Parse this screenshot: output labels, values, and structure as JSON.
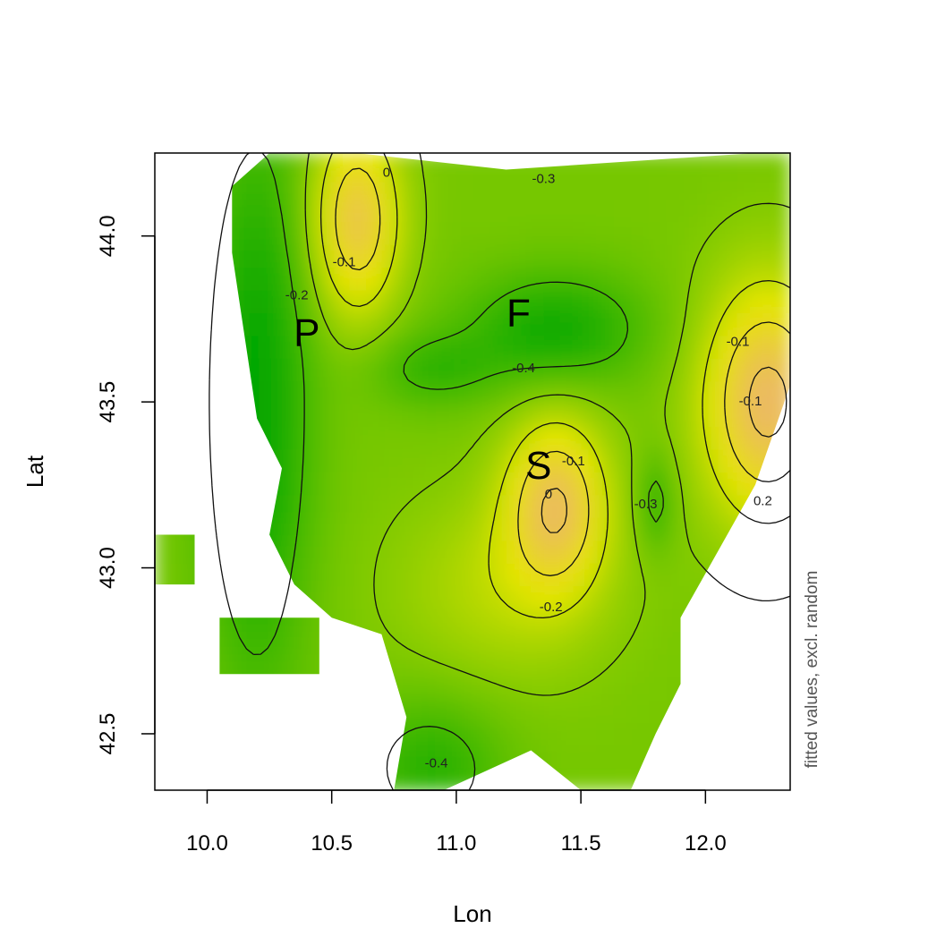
{
  "chart_data": {
    "type": "heatmap",
    "xlabel": "Lon",
    "ylabel": "Lat",
    "side_label": "fitted values, excl. random",
    "xlim": [
      9.79,
      12.34
    ],
    "ylim": [
      42.33,
      44.25
    ],
    "x_ticks": [
      "10.0",
      "10.5",
      "11.0",
      "11.5",
      "12.0"
    ],
    "y_ticks": [
      "42.5",
      "43.0",
      "43.5",
      "44.0"
    ],
    "grid": false,
    "color_scale": {
      "low": "#00a600",
      "mid": "#e6e600",
      "high": "#ecb176",
      "top": "#f2f2f2"
    },
    "value_range": [
      -0.5,
      0.2
    ],
    "regions": [
      {
        "label": "P",
        "lon": 10.4,
        "lat": 43.7
      },
      {
        "label": "F",
        "lon": 11.25,
        "lat": 43.76
      },
      {
        "label": "S",
        "lon": 11.33,
        "lat": 43.3
      }
    ],
    "contour_labels": [
      {
        "text": "0",
        "lon": 10.72,
        "lat": 44.19
      },
      {
        "text": "-0.1",
        "lon": 10.55,
        "lat": 43.92
      },
      {
        "text": "-0.2",
        "lon": 10.36,
        "lat": 43.82
      },
      {
        "text": "-0.3",
        "lon": 11.35,
        "lat": 44.17
      },
      {
        "text": "-0.4",
        "lon": 11.27,
        "lat": 43.6
      },
      {
        "text": "-0.1",
        "lon": 11.47,
        "lat": 43.32
      },
      {
        "text": "0",
        "lon": 11.37,
        "lat": 43.22
      },
      {
        "text": "-0.3",
        "lon": 11.76,
        "lat": 43.19
      },
      {
        "text": "-0.1",
        "lon": 12.13,
        "lat": 43.68
      },
      {
        "text": "-0.1",
        "lon": 12.18,
        "lat": 43.5
      },
      {
        "text": "0.2",
        "lon": 12.23,
        "lat": 43.2
      },
      {
        "text": "-0.2",
        "lon": 11.38,
        "lat": 42.88
      },
      {
        "text": "-0.4",
        "lon": 10.92,
        "lat": 42.41
      }
    ],
    "field_mask": [
      [
        12.2,
        44.25
      ],
      [
        12.3,
        44.25
      ],
      [
        12.34,
        44.25
      ],
      [
        12.34,
        43.85
      ],
      [
        12.34,
        43.55
      ],
      [
        12.2,
        43.25
      ],
      [
        12.05,
        43.05
      ],
      [
        11.9,
        42.85
      ],
      [
        11.9,
        42.65
      ],
      [
        11.8,
        42.5
      ],
      [
        11.7,
        42.33
      ],
      [
        11.5,
        42.33
      ],
      [
        11.3,
        42.45
      ],
      [
        10.95,
        42.33
      ],
      [
        10.75,
        42.33
      ],
      [
        10.8,
        42.55
      ],
      [
        10.7,
        42.8
      ],
      [
        10.5,
        42.85
      ],
      [
        10.35,
        42.95
      ],
      [
        10.25,
        43.1
      ],
      [
        10.3,
        43.3
      ],
      [
        10.2,
        43.45
      ],
      [
        10.15,
        43.7
      ],
      [
        10.1,
        43.95
      ],
      [
        10.1,
        44.15
      ],
      [
        10.25,
        44.25
      ],
      [
        10.6,
        44.25
      ],
      [
        11.2,
        44.2
      ]
    ],
    "isolated_blocks": [
      [
        [
          9.79,
          43.1
        ],
        [
          9.95,
          43.1
        ],
        [
          9.95,
          42.95
        ],
        [
          9.79,
          42.95
        ]
      ],
      [
        [
          10.05,
          42.85
        ],
        [
          10.45,
          42.85
        ],
        [
          10.45,
          42.68
        ],
        [
          10.05,
          42.68
        ]
      ]
    ]
  }
}
